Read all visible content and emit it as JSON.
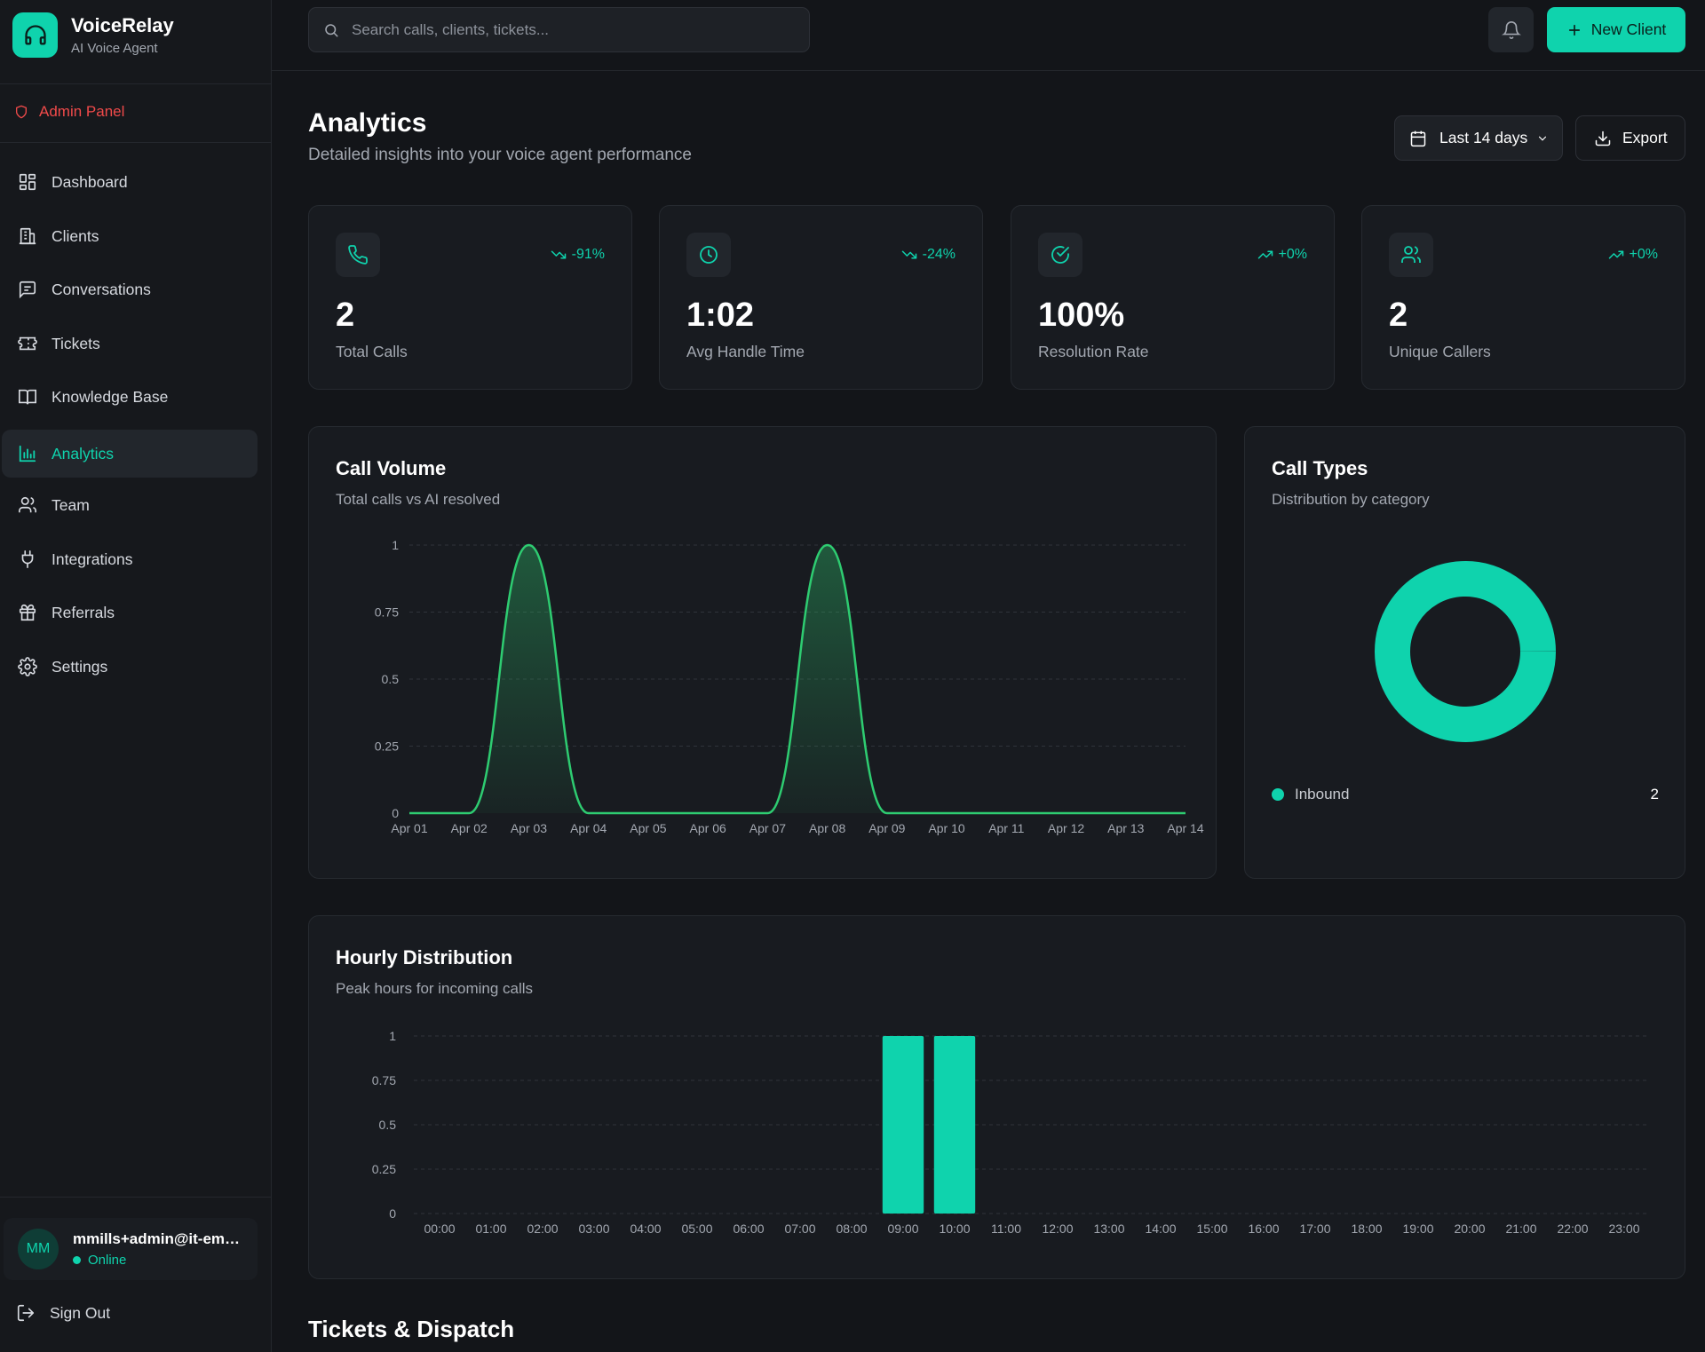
{
  "brand": {
    "name": "VoiceRelay",
    "subtitle": "AI Voice Agent"
  },
  "admin_label": "Admin Panel",
  "nav": [
    {
      "label": "Dashboard",
      "icon": "dashboard-icon"
    },
    {
      "label": "Clients",
      "icon": "building-icon"
    },
    {
      "label": "Conversations",
      "icon": "message-icon"
    },
    {
      "label": "Tickets",
      "icon": "ticket-icon"
    },
    {
      "label": "Knowledge Base",
      "icon": "book-icon"
    },
    {
      "label": "Analytics",
      "icon": "bar-chart-icon",
      "active": true
    },
    {
      "label": "Team",
      "icon": "users-icon"
    },
    {
      "label": "Integrations",
      "icon": "plug-icon"
    },
    {
      "label": "Referrals",
      "icon": "gift-icon"
    },
    {
      "label": "Settings",
      "icon": "gear-icon"
    }
  ],
  "user": {
    "initials": "MM",
    "email": "mmills+admin@it-em…",
    "status": "Online"
  },
  "signout_label": "Sign Out",
  "search": {
    "placeholder": "Search calls, clients, tickets..."
  },
  "new_client_label": "New Client",
  "header": {
    "title": "Analytics",
    "subtitle": "Detailed insights into your voice agent performance",
    "range_label": "Last 14 days",
    "export_label": "Export"
  },
  "stats": [
    {
      "value": "2",
      "label": "Total Calls",
      "trend": "-91%",
      "direction": "down",
      "icon": "phone-icon"
    },
    {
      "value": "1:02",
      "label": "Avg Handle Time",
      "trend": "-24%",
      "direction": "down",
      "icon": "clock-icon"
    },
    {
      "value": "100%",
      "label": "Resolution Rate",
      "trend": "+0%",
      "direction": "up",
      "icon": "check-circle-icon"
    },
    {
      "value": "2",
      "label": "Unique Callers",
      "trend": "+0%",
      "direction": "up",
      "icon": "users-icon"
    }
  ],
  "colors": {
    "accent": "#0fd3ad",
    "line": "#2ecc71",
    "danger": "#f04a4a",
    "background": "#131519"
  },
  "call_volume": {
    "title": "Call Volume",
    "subtitle": "Total calls vs AI resolved"
  },
  "call_types": {
    "title": "Call Types",
    "subtitle": "Distribution by category"
  },
  "hourly": {
    "title": "Hourly Distribution",
    "subtitle": "Peak hours for incoming calls"
  },
  "tickets_section_title": "Tickets & Dispatch",
  "chart_data": [
    {
      "type": "area",
      "title": "Call Volume",
      "categories": [
        "Apr 01",
        "Apr 02",
        "Apr 03",
        "Apr 04",
        "Apr 05",
        "Apr 06",
        "Apr 07",
        "Apr 08",
        "Apr 09",
        "Apr 10",
        "Apr 11",
        "Apr 12",
        "Apr 13",
        "Apr 14"
      ],
      "series": [
        {
          "values": [
            0,
            0,
            1,
            0,
            0,
            0,
            0,
            1,
            0,
            0,
            0,
            0,
            0,
            0
          ]
        }
      ],
      "yticks": [
        "0",
        "0.25",
        "0.5",
        "0.75",
        "1"
      ],
      "ylim": [
        0,
        1
      ],
      "grid": true
    },
    {
      "type": "pie",
      "title": "Call Types",
      "categories": [
        "Inbound"
      ],
      "values": [
        2
      ],
      "donut": true
    },
    {
      "type": "bar",
      "title": "Hourly Distribution",
      "categories": [
        "00:00",
        "01:00",
        "02:00",
        "03:00",
        "04:00",
        "05:00",
        "06:00",
        "07:00",
        "08:00",
        "09:00",
        "10:00",
        "11:00",
        "12:00",
        "13:00",
        "14:00",
        "15:00",
        "16:00",
        "17:00",
        "18:00",
        "19:00",
        "20:00",
        "21:00",
        "22:00",
        "23:00"
      ],
      "values": [
        0,
        0,
        0,
        0,
        0,
        0,
        0,
        0,
        0,
        1,
        1,
        0,
        0,
        0,
        0,
        0,
        0,
        0,
        0,
        0,
        0,
        0,
        0,
        0
      ],
      "yticks": [
        "0",
        "0.25",
        "0.5",
        "0.75",
        "1"
      ],
      "ylim": [
        0,
        1
      ],
      "grid": true
    }
  ]
}
